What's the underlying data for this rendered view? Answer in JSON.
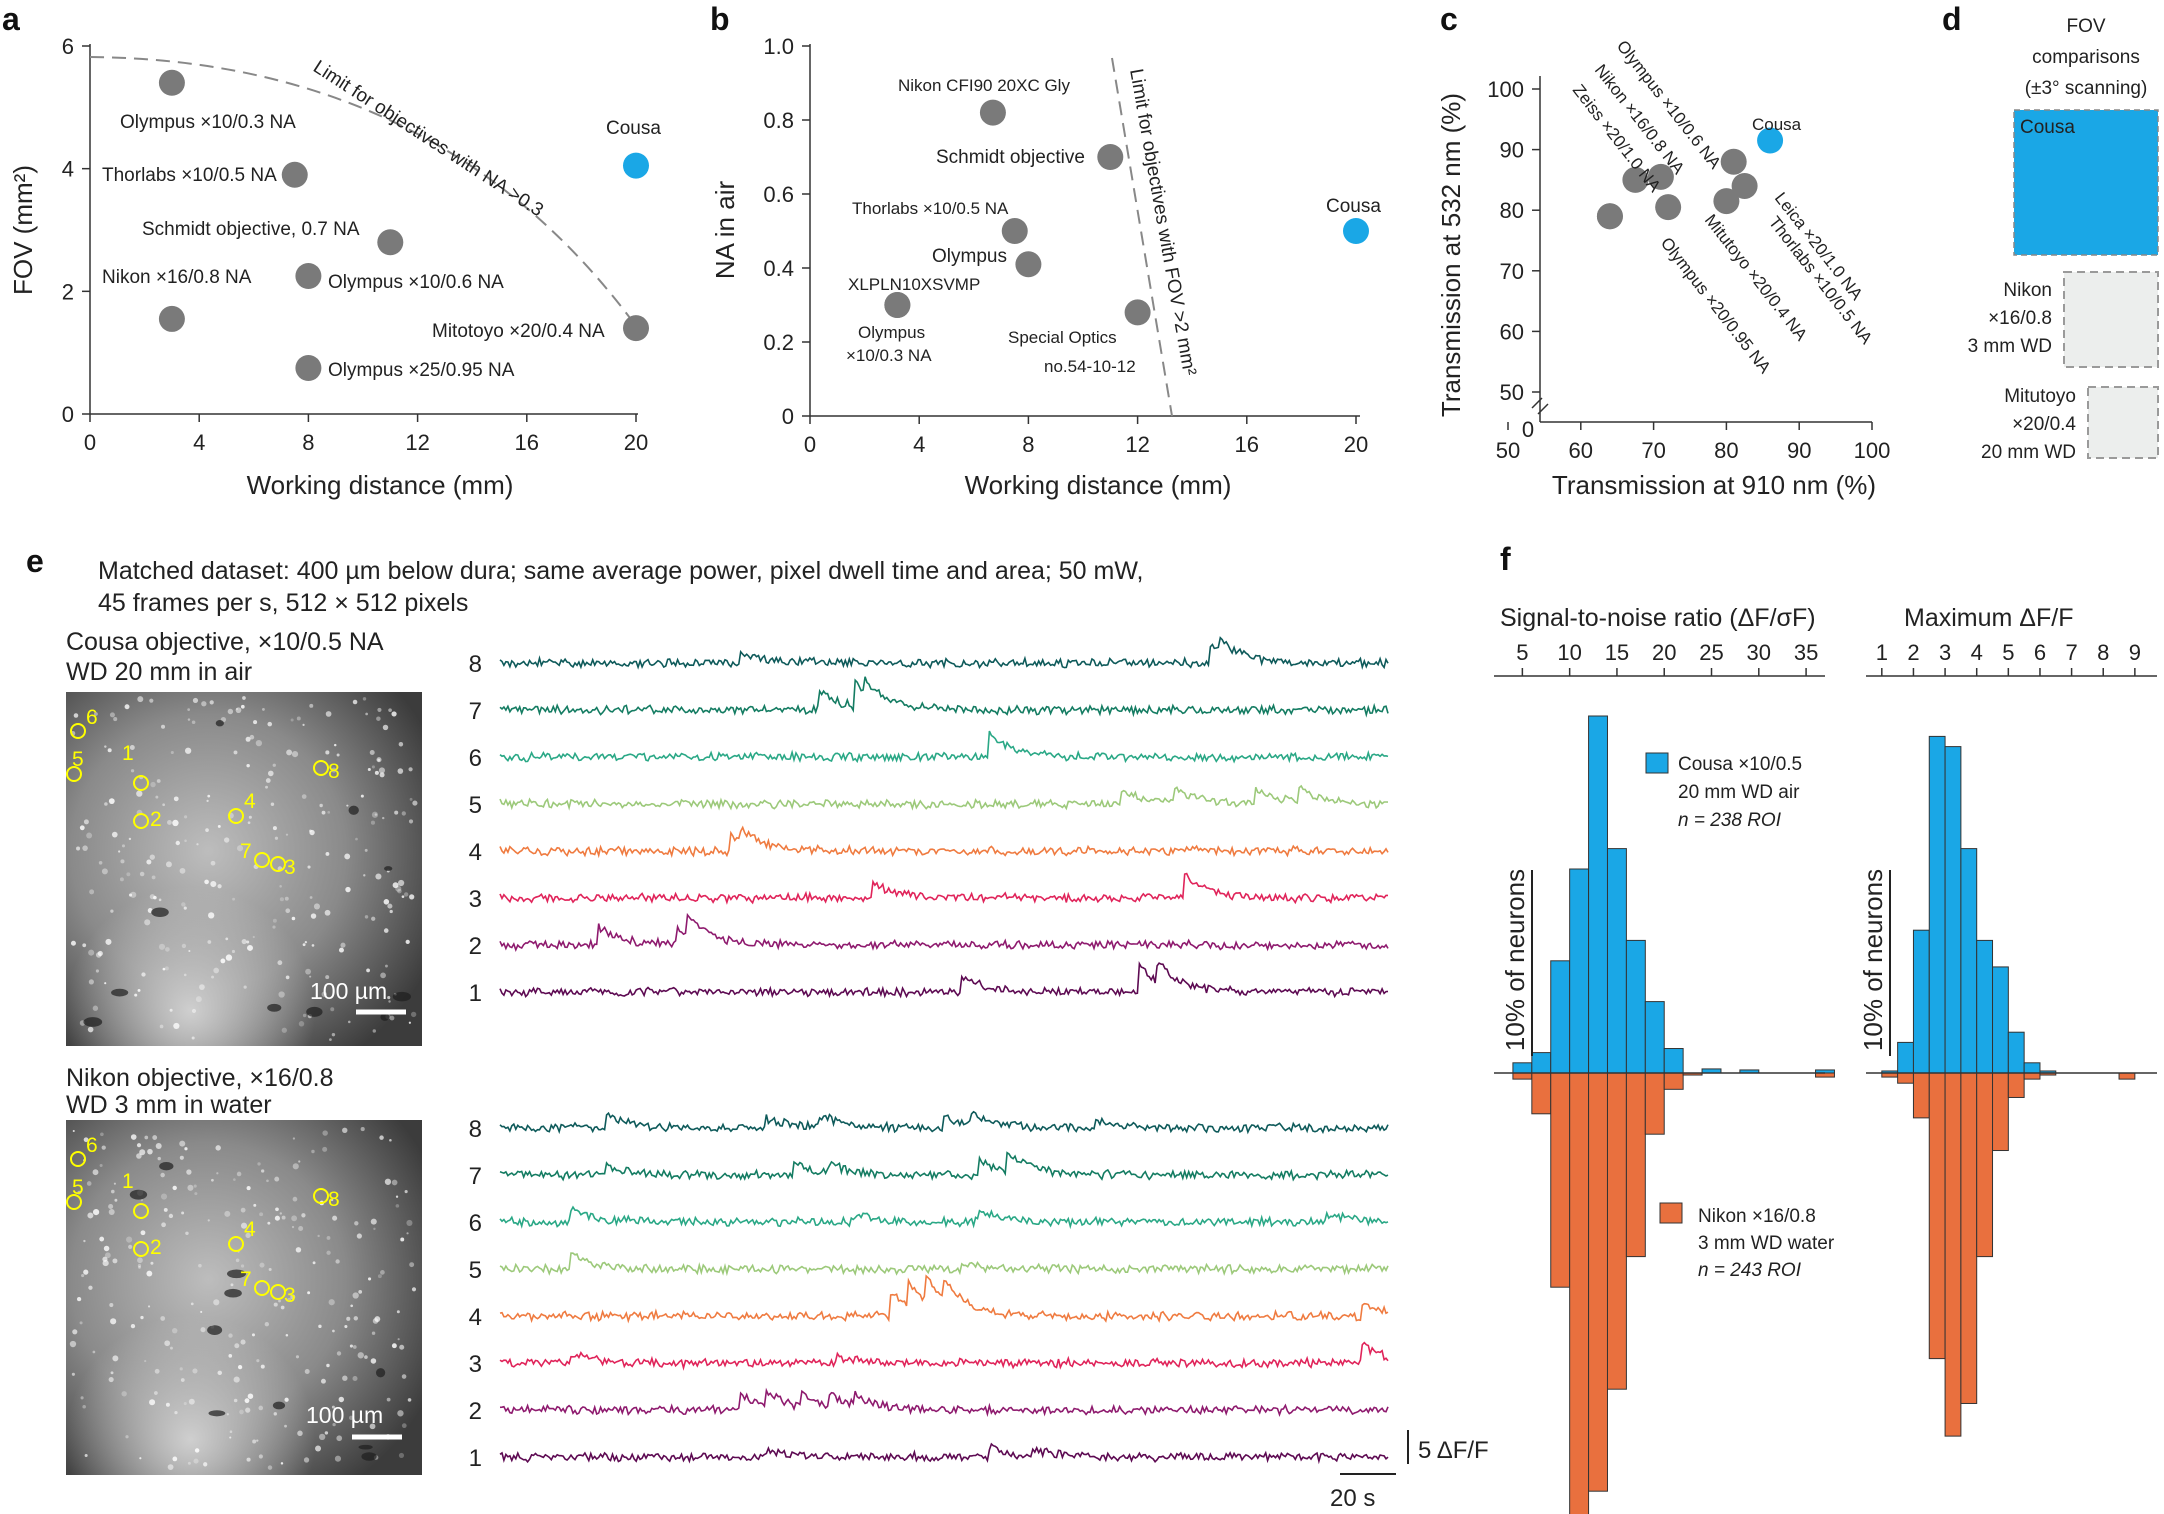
{
  "colors": {
    "cousa_blue": "#1aa7e6",
    "nikon_orange": "#e9703e",
    "dot_gray": "#7a7a7a",
    "trace_colors": [
      "#5d0a52",
      "#8e1a6e",
      "#e0245a",
      "#ef7b40",
      "#9cc97a",
      "#2aa886",
      "#147c62",
      "#0e5a5a"
    ],
    "roi_yellow": "#ffff00"
  },
  "panels": {
    "a": "a",
    "b": "b",
    "c": "c",
    "d": "d",
    "e": "e",
    "f": "f"
  },
  "chart_data": [
    {
      "id": "a",
      "type": "scatter",
      "xlabel": "Working distance (mm)",
      "ylabel": "FOV (mm²)",
      "xticks": [
        "0",
        "4",
        "8",
        "12",
        "16",
        "20"
      ],
      "yticks": [
        "0",
        "2",
        "4",
        "6"
      ],
      "xlim": [
        0,
        20
      ],
      "ylim": [
        0,
        6
      ],
      "limit_label": "Limit for objectives with NA >0.3",
      "points": [
        {
          "label": "Olympus ×10/0.3 NA",
          "x": 3,
          "y": 5.4
        },
        {
          "label": "Thorlabs ×10/0.5 NA",
          "x": 7.5,
          "y": 3.9
        },
        {
          "label": "Schmidt objective, 0.7 NA",
          "x": 11,
          "y": 2.8
        },
        {
          "label": "Nikon ×16/0.8 NA",
          "x": 3,
          "y": 1.55
        },
        {
          "label": "Olympus ×10/0.6 NA",
          "x": 8,
          "y": 2.25
        },
        {
          "label": "Olympus ×25/0.95 NA",
          "x": 8,
          "y": 0.75
        },
        {
          "label": "Mitotoyo ×20/0.4 NA",
          "x": 20,
          "y": 1.4
        },
        {
          "label": "Cousa",
          "x": 20,
          "y": 4.05,
          "highlight": true
        }
      ]
    },
    {
      "id": "b",
      "type": "scatter",
      "xlabel": "Working distance (mm)",
      "ylabel": "NA in air",
      "xticks": [
        "0",
        "4",
        "8",
        "12",
        "16",
        "20"
      ],
      "yticks": [
        "0",
        "0.2",
        "0.4",
        "0.6",
        "0.8",
        "1.0"
      ],
      "xlim": [
        0,
        20
      ],
      "ylim": [
        0,
        1
      ],
      "limit_label": "Limit for objectives with FOV >2 mm²",
      "points": [
        {
          "label": "Nikon CFI90 20XC Gly",
          "x": 6.7,
          "y": 0.82
        },
        {
          "label": "Schmidt objective",
          "x": 11,
          "y": 0.7
        },
        {
          "label": "Thorlabs ×10/0.5 NA",
          "x": 7.5,
          "y": 0.5
        },
        {
          "label": "Olympus",
          "x": 8,
          "y": 0.41
        },
        {
          "label": "XLPLN10XSVMP",
          "x": 3.2,
          "y": 0.3
        },
        {
          "label": "Olympus ×10/0.3 NA",
          "x": 3.2,
          "y": 0.3
        },
        {
          "label": "Special Optics no.54-10-12",
          "x": 12,
          "y": 0.28
        },
        {
          "label": "Cousa",
          "x": 20,
          "y": 0.5,
          "highlight": true
        }
      ],
      "label_texts": {
        "nikon": "Nikon CFI90 20XC Gly",
        "schmidt": "Schmidt objective",
        "thorlabs": "Thorlabs ×10/0.5 NA",
        "olympus": "Olympus",
        "xlpln": "XLPLN10XSVMP",
        "oly1": "Olympus",
        "oly2": "×10/0.3 NA",
        "sp1": "Special Optics",
        "sp2": "no.54-10-12",
        "cousa": "Cousa"
      }
    },
    {
      "id": "c",
      "type": "scatter",
      "xlabel": "Transmission at 910 nm (%)",
      "ylabel": "Transmission at 532 nm (%)",
      "xticks": [
        "50",
        "60",
        "70",
        "80",
        "90",
        "100"
      ],
      "yticks": [
        "50",
        "60",
        "70",
        "80",
        "90",
        "100"
      ],
      "zero_label": "0",
      "xlim": [
        50,
        100
      ],
      "ylim": [
        50,
        100
      ],
      "points": [
        {
          "label": "Olympus ×10/0.6 NA",
          "x": 71,
          "y": 85.5
        },
        {
          "label": "Nikon ×16/0.8 NA",
          "x": 67.5,
          "y": 85
        },
        {
          "label": "Zeiss ×20/1.0 NA",
          "x": 64,
          "y": 79
        },
        {
          "label": "Mitutoyo ×20/0.4 NA",
          "x": 72,
          "y": 80.5
        },
        {
          "label": "Olympus ×20/0.95 NA",
          "x": 64,
          "y": 79
        },
        {
          "label": "Leica ×20/1.0 NA",
          "x": 81,
          "y": 88
        },
        {
          "label": "Thorlabs ×10/0.5 NA",
          "x": 82.5,
          "y": 84
        },
        {
          "label": "Thorlabs ×10/0.5 NA",
          "x": 80,
          "y": 81.5
        },
        {
          "label": "Cousa",
          "x": 86,
          "y": 91.5,
          "highlight": true
        }
      ]
    },
    {
      "id": "d",
      "type": "table",
      "title": "FOV comparisons (±3° scanning)",
      "title_lines": [
        "FOV",
        "comparisons",
        "(±3° scanning)"
      ],
      "boxes": [
        {
          "label": "Cousa"
        },
        {
          "label_lines": [
            "Nikon",
            "×16/0.8",
            "3 mm WD"
          ]
        },
        {
          "label_lines": [
            "Mitutoyo",
            "×20/0.4",
            "20 mm WD"
          ]
        }
      ]
    },
    {
      "id": "e",
      "type": "line",
      "header_line1": "Matched dataset: 400 µm below dura; same average power, pixel dwell time and area; 50 mW,",
      "header_line2": "45 frames per s, 512 × 512 pixels",
      "groups": [
        {
          "title_line1": "Cousa objective, ×10/0.5 NA",
          "title_line2": "WD 20 mm in air",
          "scale": "100 µm"
        },
        {
          "title_line1": "Nikon objective, ×16/0.8",
          "title_line2": "WD 3 mm in water",
          "scale": "100 µm"
        }
      ],
      "roi_labels": [
        "1",
        "2",
        "3",
        "4",
        "5",
        "6",
        "7",
        "8"
      ],
      "trace_labels": [
        "1",
        "2",
        "3",
        "4",
        "5",
        "6",
        "7",
        "8"
      ],
      "scale_y": "5 ΔF/F",
      "scale_x": "20 s",
      "events": [
        [
          [
            0.52,
            1.0
          ],
          [
            0.72,
            1.6
          ],
          [
            0.74,
            1.2
          ]
        ],
        [
          [
            0.11,
            1.2
          ],
          [
            0.2,
            1.0
          ],
          [
            0.21,
            1.4
          ]
        ],
        [
          [
            0.42,
            1.0
          ],
          [
            0.77,
            1.6
          ]
        ],
        [
          [
            0.26,
            1.0
          ],
          [
            0.27,
            0.8
          ]
        ],
        [
          [
            0.7,
            0.8
          ],
          [
            0.76,
            1.0
          ],
          [
            0.85,
            0.9
          ],
          [
            0.9,
            0.8
          ]
        ],
        [
          [
            0.55,
            1.6
          ]
        ],
        [
          [
            0.36,
            1.2
          ],
          [
            0.4,
            1.5
          ],
          [
            0.41,
            0.9
          ]
        ],
        [
          [
            0.27,
            0.8
          ],
          [
            0.8,
            1.1
          ],
          [
            0.81,
            0.9
          ]
        ],
        [
          [
            0.3,
            0.4
          ],
          [
            0.55,
            0.6
          ],
          [
            0.6,
            0.5
          ]
        ],
        [
          [
            0.27,
            1.0
          ],
          [
            0.3,
            0.9
          ],
          [
            0.34,
            0.8
          ],
          [
            0.37,
            0.8
          ],
          [
            0.4,
            0.7
          ]
        ],
        [
          [
            0.08,
            0.6
          ],
          [
            0.38,
            0.4
          ],
          [
            0.97,
            1.2
          ]
        ],
        [
          [
            0.44,
            1.5
          ],
          [
            0.46,
            1.5
          ],
          [
            0.48,
            1.5
          ],
          [
            0.5,
            1.2
          ],
          [
            0.97,
            0.8
          ]
        ],
        [
          [
            0.08,
            0.9
          ],
          [
            0.52,
            0.3
          ]
        ],
        [
          [
            0.08,
            0.8
          ],
          [
            0.4,
            0.5
          ],
          [
            0.54,
            0.7
          ],
          [
            0.93,
            0.5
          ]
        ],
        [
          [
            0.12,
            0.7
          ],
          [
            0.33,
            0.8
          ],
          [
            0.37,
            0.6
          ],
          [
            0.54,
            0.9
          ],
          [
            0.57,
            1.3
          ]
        ],
        [
          [
            0.12,
            0.8
          ],
          [
            0.3,
            0.6
          ],
          [
            0.36,
            0.8
          ],
          [
            0.5,
            0.7
          ],
          [
            0.53,
            0.8
          ],
          [
            0.67,
            0.5
          ]
        ]
      ]
    },
    {
      "id": "f",
      "type": "bar",
      "legend_top": [
        "Cousa ×10/0.5",
        "20 mm WD air",
        "n = 238 ROI"
      ],
      "legend_bottom": [
        "Nikon ×16/0.8",
        "3 mm WD water",
        "n = 243 ROI"
      ],
      "ylabel": "10% of neurons",
      "series": [
        {
          "name": "Signal-to-noise ratio (ΔF/σF)",
          "xticks": [
            "5",
            "10",
            "15",
            "20",
            "25",
            "30",
            "35"
          ],
          "xlim": [
            2,
            37
          ],
          "bin_width": 2,
          "bin_start": 4,
          "cousa": [
            0.5,
            1.0,
            5.5,
            10.0,
            17.5,
            11.0,
            6.5,
            3.5,
            1.2,
            0,
            0.2,
            0,
            0.15,
            0,
            0,
            0,
            0.15
          ],
          "nikon": [
            0.3,
            2.0,
            10.5,
            23.0,
            20.5,
            15.5,
            9.0,
            3.0,
            0.8,
            0.1,
            0,
            0,
            0,
            0,
            0,
            0,
            0.2
          ]
        },
        {
          "name": "Maximum ΔF/F",
          "xticks": [
            "1",
            "2",
            "3",
            "4",
            "5",
            "6",
            "7",
            "8",
            "9"
          ],
          "xlim": [
            0.5,
            9.7
          ],
          "bin_width": 0.5,
          "bin_start": 1,
          "cousa": [
            0.1,
            1.5,
            7.0,
            16.5,
            16.0,
            11.0,
            6.5,
            5.2,
            2.0,
            0.5,
            0.1,
            0,
            0,
            0,
            0,
            0
          ],
          "nikon": [
            0.2,
            0.5,
            2.2,
            14.0,
            17.8,
            16.2,
            9.0,
            3.8,
            1.2,
            0.3,
            0.1,
            0,
            0,
            0,
            0,
            0.3
          ]
        }
      ]
    }
  ]
}
